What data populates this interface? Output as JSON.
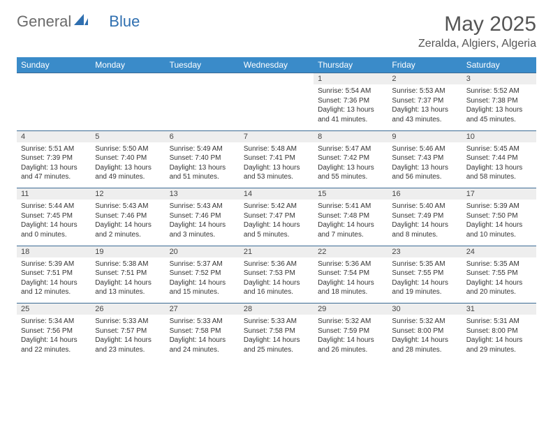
{
  "brand": {
    "part1": "General",
    "part2": "Blue"
  },
  "title": "May 2025",
  "location": "Zeralda, Algiers, Algeria",
  "theme": {
    "header_bg": "#3a8bc9",
    "header_text": "#ffffff",
    "daynum_bg": "#eeeeee",
    "row_border": "#3a6a94",
    "body_bg": "#ffffff",
    "text_color": "#333333",
    "title_color": "#555555",
    "logo_gray": "#6b6b6b",
    "logo_blue": "#2f6fb0"
  },
  "day_headers": [
    "Sunday",
    "Monday",
    "Tuesday",
    "Wednesday",
    "Thursday",
    "Friday",
    "Saturday"
  ],
  "weeks": [
    [
      null,
      null,
      null,
      null,
      {
        "n": "1",
        "sr": "5:54 AM",
        "ss": "7:36 PM",
        "dl": "13 hours and 41 minutes."
      },
      {
        "n": "2",
        "sr": "5:53 AM",
        "ss": "7:37 PM",
        "dl": "13 hours and 43 minutes."
      },
      {
        "n": "3",
        "sr": "5:52 AM",
        "ss": "7:38 PM",
        "dl": "13 hours and 45 minutes."
      }
    ],
    [
      {
        "n": "4",
        "sr": "5:51 AM",
        "ss": "7:39 PM",
        "dl": "13 hours and 47 minutes."
      },
      {
        "n": "5",
        "sr": "5:50 AM",
        "ss": "7:40 PM",
        "dl": "13 hours and 49 minutes."
      },
      {
        "n": "6",
        "sr": "5:49 AM",
        "ss": "7:40 PM",
        "dl": "13 hours and 51 minutes."
      },
      {
        "n": "7",
        "sr": "5:48 AM",
        "ss": "7:41 PM",
        "dl": "13 hours and 53 minutes."
      },
      {
        "n": "8",
        "sr": "5:47 AM",
        "ss": "7:42 PM",
        "dl": "13 hours and 55 minutes."
      },
      {
        "n": "9",
        "sr": "5:46 AM",
        "ss": "7:43 PM",
        "dl": "13 hours and 56 minutes."
      },
      {
        "n": "10",
        "sr": "5:45 AM",
        "ss": "7:44 PM",
        "dl": "13 hours and 58 minutes."
      }
    ],
    [
      {
        "n": "11",
        "sr": "5:44 AM",
        "ss": "7:45 PM",
        "dl": "14 hours and 0 minutes."
      },
      {
        "n": "12",
        "sr": "5:43 AM",
        "ss": "7:46 PM",
        "dl": "14 hours and 2 minutes."
      },
      {
        "n": "13",
        "sr": "5:43 AM",
        "ss": "7:46 PM",
        "dl": "14 hours and 3 minutes."
      },
      {
        "n": "14",
        "sr": "5:42 AM",
        "ss": "7:47 PM",
        "dl": "14 hours and 5 minutes."
      },
      {
        "n": "15",
        "sr": "5:41 AM",
        "ss": "7:48 PM",
        "dl": "14 hours and 7 minutes."
      },
      {
        "n": "16",
        "sr": "5:40 AM",
        "ss": "7:49 PM",
        "dl": "14 hours and 8 minutes."
      },
      {
        "n": "17",
        "sr": "5:39 AM",
        "ss": "7:50 PM",
        "dl": "14 hours and 10 minutes."
      }
    ],
    [
      {
        "n": "18",
        "sr": "5:39 AM",
        "ss": "7:51 PM",
        "dl": "14 hours and 12 minutes."
      },
      {
        "n": "19",
        "sr": "5:38 AM",
        "ss": "7:51 PM",
        "dl": "14 hours and 13 minutes."
      },
      {
        "n": "20",
        "sr": "5:37 AM",
        "ss": "7:52 PM",
        "dl": "14 hours and 15 minutes."
      },
      {
        "n": "21",
        "sr": "5:36 AM",
        "ss": "7:53 PM",
        "dl": "14 hours and 16 minutes."
      },
      {
        "n": "22",
        "sr": "5:36 AM",
        "ss": "7:54 PM",
        "dl": "14 hours and 18 minutes."
      },
      {
        "n": "23",
        "sr": "5:35 AM",
        "ss": "7:55 PM",
        "dl": "14 hours and 19 minutes."
      },
      {
        "n": "24",
        "sr": "5:35 AM",
        "ss": "7:55 PM",
        "dl": "14 hours and 20 minutes."
      }
    ],
    [
      {
        "n": "25",
        "sr": "5:34 AM",
        "ss": "7:56 PM",
        "dl": "14 hours and 22 minutes."
      },
      {
        "n": "26",
        "sr": "5:33 AM",
        "ss": "7:57 PM",
        "dl": "14 hours and 23 minutes."
      },
      {
        "n": "27",
        "sr": "5:33 AM",
        "ss": "7:58 PM",
        "dl": "14 hours and 24 minutes."
      },
      {
        "n": "28",
        "sr": "5:33 AM",
        "ss": "7:58 PM",
        "dl": "14 hours and 25 minutes."
      },
      {
        "n": "29",
        "sr": "5:32 AM",
        "ss": "7:59 PM",
        "dl": "14 hours and 26 minutes."
      },
      {
        "n": "30",
        "sr": "5:32 AM",
        "ss": "8:00 PM",
        "dl": "14 hours and 28 minutes."
      },
      {
        "n": "31",
        "sr": "5:31 AM",
        "ss": "8:00 PM",
        "dl": "14 hours and 29 minutes."
      }
    ]
  ],
  "labels": {
    "sunrise": "Sunrise:",
    "sunset": "Sunset:",
    "daylight": "Daylight:"
  }
}
